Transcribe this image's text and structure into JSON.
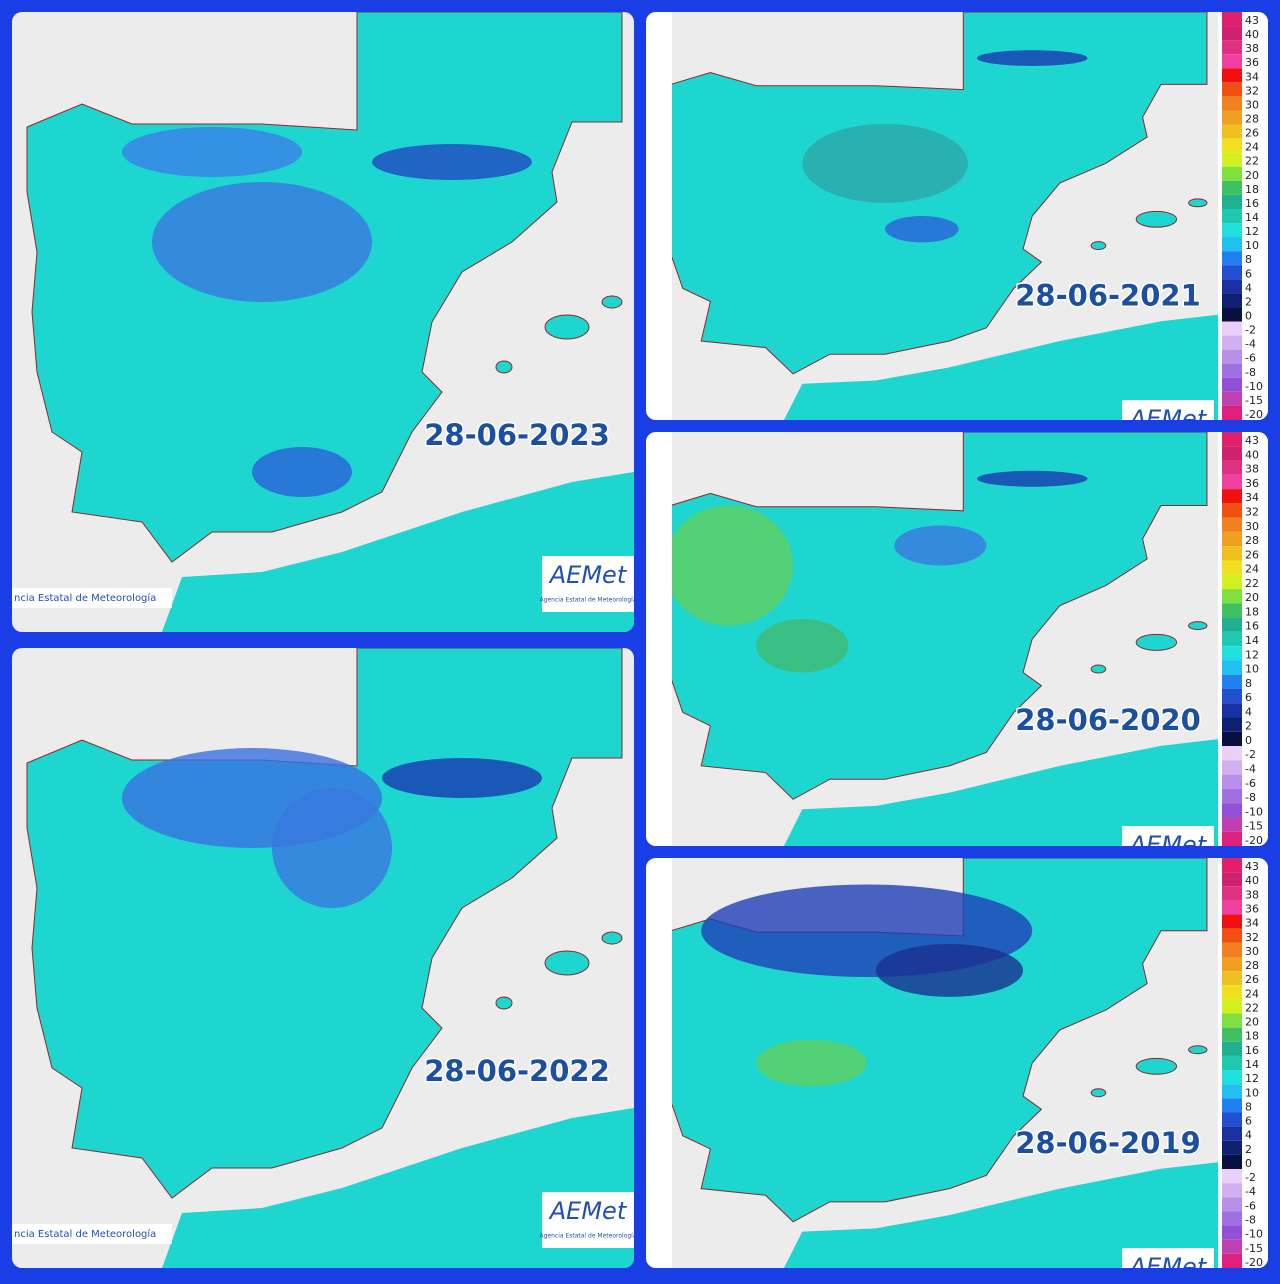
{
  "panels": [
    {
      "date": "28-06-2023",
      "logo": "AEMet",
      "logo_caption": "Agencia Estatal de Meteorología",
      "footer": "ncia Estatal de Meteorología"
    },
    {
      "date": "28-06-2022",
      "logo": "AEMet",
      "logo_caption": "Agencia Estatal de Meteorología",
      "footer": "ncia Estatal de Meteorología"
    },
    {
      "date": "28-06-2021",
      "logo": "AEMet"
    },
    {
      "date": "28-06-2020",
      "logo": "AEMet"
    },
    {
      "date": "28-06-2019",
      "logo": "AEMet"
    }
  ],
  "legend": {
    "labels": [
      "43",
      "40",
      "38",
      "36",
      "34",
      "32",
      "30",
      "28",
      "26",
      "24",
      "22",
      "20",
      "18",
      "16",
      "14",
      "12",
      "10",
      "8",
      "6",
      "4",
      "2",
      "0",
      "-2",
      "-4",
      "-6",
      "-8",
      "-10",
      "-15",
      "-20"
    ],
    "colors": [
      "#e0206a",
      "#d02070",
      "#e03080",
      "#f040a0",
      "#f01010",
      "#f05010",
      "#f08020",
      "#f0a020",
      "#f0c020",
      "#f0e020",
      "#d0f020",
      "#80e040",
      "#40c060",
      "#20b090",
      "#20c8b0",
      "#20e0e0",
      "#20c0f0",
      "#2080f0",
      "#2050d0",
      "#1830a0",
      "#102070",
      "#081040",
      "#e8d0f8",
      "#d0b0f0",
      "#b890e8",
      "#a070e0",
      "#9050d8",
      "#c040b0",
      "#e02080"
    ]
  }
}
